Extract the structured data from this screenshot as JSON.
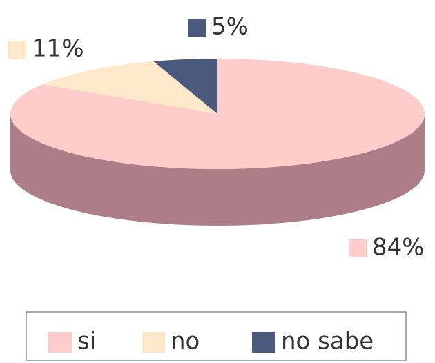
{
  "chart_data": {
    "type": "pie",
    "categories": [
      "si",
      "no",
      "no sabe"
    ],
    "values": [
      84,
      11,
      5
    ],
    "value_labels": [
      "84%",
      "11%",
      "5%"
    ],
    "colors": [
      "#ffcccc",
      "#fde9c9",
      "#4b5a7c"
    ],
    "legend": "bottom"
  }
}
